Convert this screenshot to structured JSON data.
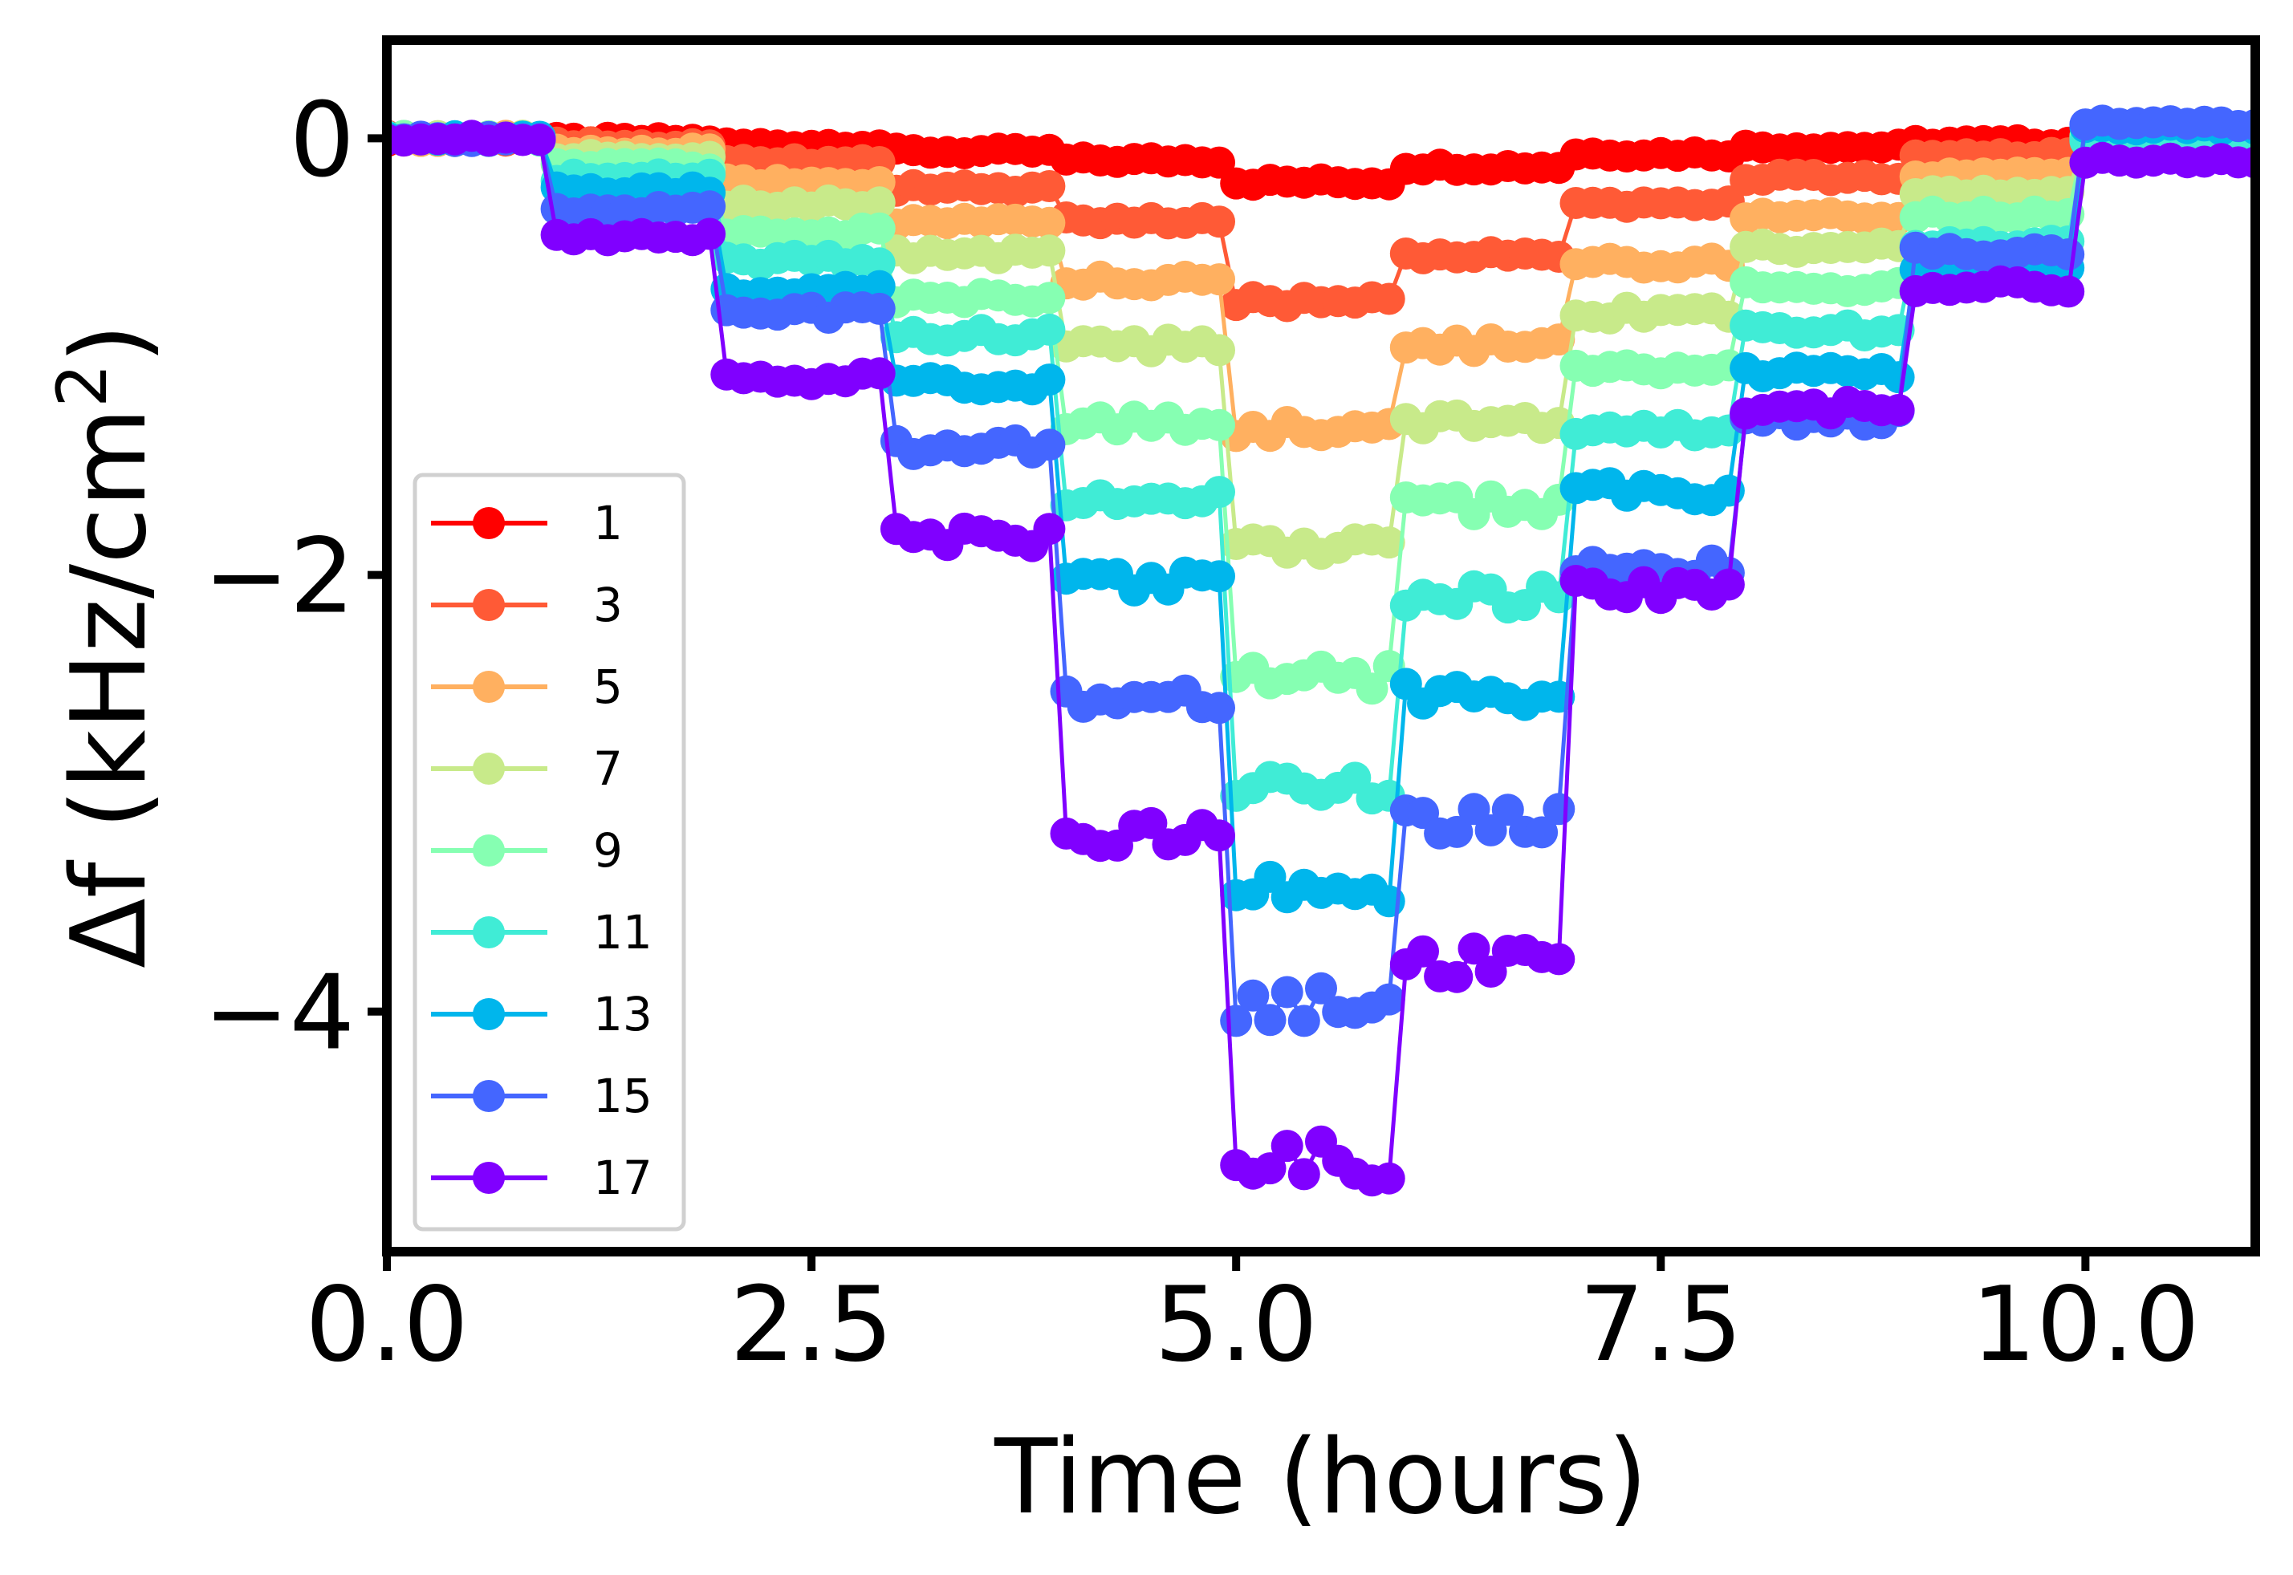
{
  "chart_data": {
    "type": "line",
    "title": "",
    "xlabel": "Time (hours)",
    "ylabel_main": "Δf (kHz/cm",
    "ylabel_sup": "2",
    "ylabel_close": ")",
    "xlim": [
      0,
      11
    ],
    "ylim": [
      -5.1,
      0.45
    ],
    "xticks": [
      0,
      2.5,
      5,
      7.5,
      10
    ],
    "xtick_labels": [
      "0.0",
      "2.5",
      "5.0",
      "7.5",
      "10.0"
    ],
    "yticks": [
      0,
      -2,
      -4
    ],
    "ytick_labels": [
      "0",
      "−2",
      "−4"
    ],
    "grid": false,
    "legend_position": "lower-left",
    "markers": "circle",
    "series": [
      {
        "name": "1",
        "color": "#ff0000",
        "step_values": [
          0,
          -0.01,
          -0.03,
          -0.06,
          -0.1,
          -0.2,
          -0.13,
          -0.07,
          -0.04,
          -0.02,
          0.0
        ]
      },
      {
        "name": "3",
        "color": "#ff5a36",
        "step_values": [
          0,
          -0.03,
          -0.11,
          -0.23,
          -0.38,
          -0.75,
          -0.53,
          -0.3,
          -0.18,
          -0.08,
          0.0
        ]
      },
      {
        "name": "5",
        "color": "#ffb060",
        "step_values": [
          0,
          -0.06,
          -0.2,
          -0.38,
          -0.65,
          -1.33,
          -0.95,
          -0.57,
          -0.35,
          -0.17,
          0.0
        ]
      },
      {
        "name": "7",
        "color": "#c8ea8a",
        "step_values": [
          0,
          -0.09,
          -0.3,
          -0.53,
          -0.95,
          -1.88,
          -1.3,
          -0.8,
          -0.5,
          -0.25,
          0.0
        ]
      },
      {
        "name": "9",
        "color": "#86ffb2",
        "step_values": [
          0,
          -0.13,
          -0.43,
          -0.73,
          -1.3,
          -2.47,
          -1.68,
          -1.05,
          -0.68,
          -0.35,
          0.0
        ]
      },
      {
        "name": "11",
        "color": "#40ecd6",
        "step_values": [
          0,
          -0.18,
          -0.56,
          -0.9,
          -1.65,
          -2.97,
          -2.1,
          -1.33,
          -0.88,
          -0.48,
          0.0
        ]
      },
      {
        "name": "13",
        "color": "#00b6ec",
        "step_values": [
          0,
          -0.24,
          -0.7,
          -1.13,
          -2.03,
          -3.45,
          -2.55,
          -1.62,
          -1.08,
          -0.58,
          0.05
        ]
      },
      {
        "name": "15",
        "color": "#4466ff",
        "step_values": [
          0,
          -0.33,
          -0.8,
          -1.42,
          -2.57,
          -3.97,
          -3.13,
          -1.97,
          -1.28,
          -0.52,
          0.07
        ]
      },
      {
        "name": "17",
        "color": "#8000ff",
        "step_values": [
          0,
          -0.45,
          -1.1,
          -1.83,
          -3.18,
          -4.68,
          -3.78,
          -2.07,
          -1.23,
          -0.68,
          -0.1
        ]
      }
    ]
  }
}
